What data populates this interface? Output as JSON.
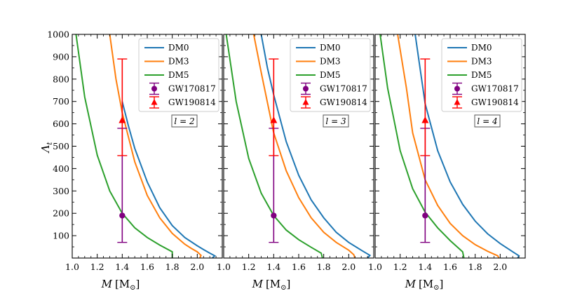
{
  "chart_data": {
    "type": "line",
    "ylabel": "Λ",
    "ylabel_sub": "t",
    "xlabel_italic": "M",
    "xlabel_unit": "[M",
    "xlabel_unit_sub": "⊙",
    "xlabel_unit_close": "]",
    "xlim": [
      1.0,
      2.2
    ],
    "ylim": [
      0,
      1000
    ],
    "x_ticks": [
      "1.0",
      "1.2",
      "1.4",
      "1.6",
      "1.8",
      "2.0"
    ],
    "y_ticks": [
      "100",
      "200",
      "300",
      "400",
      "500",
      "600",
      "700",
      "800",
      "900",
      "1000"
    ],
    "legend": [
      "DM0",
      "DM3",
      "DM5",
      "GW170817",
      "GW190814"
    ],
    "colors": {
      "DM0": "#1f77b4",
      "DM3": "#ff7f0e",
      "DM5": "#2ca02c",
      "GW170817": "#800080",
      "GW190814": "#ff0000"
    },
    "panels": [
      {
        "annotation": "l = 2",
        "series": [
          {
            "name": "DM0",
            "x": [
              1.4,
              1.45,
              1.5,
              1.6,
              1.7,
              1.8,
              1.9,
              2.0,
              2.05,
              2.1,
              2.14,
              2.12
            ],
            "y": [
              700,
              590,
              490,
              340,
              225,
              145,
              92,
              55,
              38,
              22,
              10,
              0
            ]
          },
          {
            "name": "DM3",
            "x": [
              1.3,
              1.35,
              1.4,
              1.5,
              1.6,
              1.7,
              1.8,
              1.9,
              1.95,
              2.0,
              2.03,
              2.02
            ],
            "y": [
              1000,
              800,
              650,
              430,
              280,
              180,
              110,
              62,
              44,
              28,
              12,
              0
            ]
          },
          {
            "name": "DM5",
            "x": [
              1.03,
              1.1,
              1.2,
              1.3,
              1.4,
              1.5,
              1.6,
              1.7,
              1.8,
              1.8
            ],
            "y": [
              1000,
              720,
              460,
              300,
              200,
              135,
              92,
              58,
              28,
              0
            ]
          }
        ],
        "gw170817": {
          "x": 1.4,
          "y": 190,
          "yerr_low": 70,
          "yerr_high": 580
        },
        "gw190814": {
          "x": 1.4,
          "y": 616,
          "yerr_low": 458,
          "yerr_high": 890
        }
      },
      {
        "annotation": "l = 3",
        "series": [
          {
            "name": "DM0",
            "x": [
              1.3,
              1.35,
              1.4,
              1.5,
              1.6,
              1.7,
              1.8,
              1.9,
              2.0,
              2.1,
              2.17,
              2.15
            ],
            "y": [
              1000,
              850,
              730,
              520,
              370,
              260,
              180,
              115,
              70,
              35,
              12,
              0
            ]
          },
          {
            "name": "DM3",
            "x": [
              1.24,
              1.3,
              1.4,
              1.5,
              1.6,
              1.7,
              1.8,
              1.9,
              2.0,
              2.04,
              2.05
            ],
            "y": [
              1000,
              830,
              560,
              390,
              270,
              180,
              115,
              70,
              35,
              15,
              0
            ]
          },
          {
            "name": "DM5",
            "x": [
              1.02,
              1.1,
              1.2,
              1.3,
              1.4,
              1.5,
              1.6,
              1.7,
              1.78,
              1.79
            ],
            "y": [
              1000,
              700,
              445,
              290,
              190,
              125,
              82,
              48,
              22,
              0
            ]
          }
        ],
        "gw170817": {
          "x": 1.4,
          "y": 190,
          "yerr_low": 70,
          "yerr_high": 580
        },
        "gw190814": {
          "x": 1.4,
          "y": 616,
          "yerr_low": 458,
          "yerr_high": 890
        }
      },
      {
        "annotation": "l = 4",
        "series": [
          {
            "name": "DM0",
            "x": [
              1.32,
              1.4,
              1.5,
              1.6,
              1.7,
              1.8,
              1.9,
              2.0,
              2.1,
              2.15,
              2.14
            ],
            "y": [
              1000,
              690,
              480,
              340,
              240,
              165,
              108,
              65,
              28,
              10,
              0
            ]
          },
          {
            "name": "DM3",
            "x": [
              1.18,
              1.25,
              1.3,
              1.4,
              1.5,
              1.6,
              1.7,
              1.8,
              1.9,
              1.98,
              1.99
            ],
            "y": [
              1000,
              760,
              560,
              350,
              235,
              155,
              100,
              60,
              30,
              10,
              0
            ]
          },
          {
            "name": "DM5",
            "x": [
              1.04,
              1.1,
              1.2,
              1.3,
              1.4,
              1.5,
              1.6,
              1.7,
              1.71
            ],
            "y": [
              1000,
              760,
              480,
              310,
              205,
              135,
              78,
              28,
              0
            ]
          }
        ],
        "gw170817": {
          "x": 1.4,
          "y": 190,
          "yerr_low": 70,
          "yerr_high": 580
        },
        "gw190814": {
          "x": 1.4,
          "y": 616,
          "yerr_low": 458,
          "yerr_high": 890
        }
      }
    ]
  }
}
